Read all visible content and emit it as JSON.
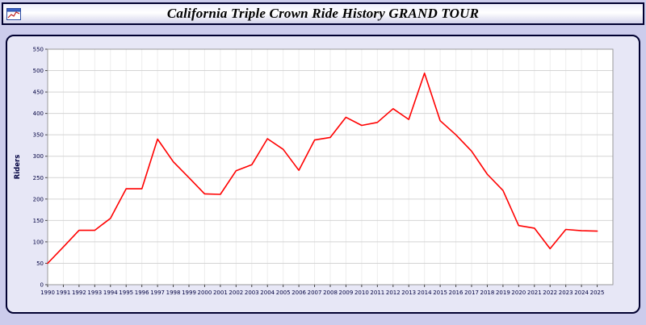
{
  "title": "California Triple Crown Ride History GRAND TOUR",
  "colors": {
    "page_background": "#ccccec",
    "panel_background": "#e7e7f6",
    "border": "#000030",
    "line": "#ff0000",
    "gridline": "#d4d4d4",
    "tick_text": "#000040"
  },
  "chart_data": {
    "type": "line",
    "title": "California Triple Crown Ride History GRAND TOUR",
    "xlabel": "",
    "ylabel": "Riders",
    "ylim": [
      0,
      550
    ],
    "ytick_step": 50,
    "grid": true,
    "legend": "none",
    "line_color": "#ff0000",
    "categories": [
      "1990",
      "1991",
      "1992",
      "1993",
      "1994",
      "1995",
      "1996",
      "1997",
      "1998",
      "1999",
      "2000",
      "2001",
      "2002",
      "2003",
      "2004",
      "2005",
      "2006",
      "2007",
      "2008",
      "2009",
      "2010",
      "2011",
      "2012",
      "2013",
      "2014",
      "2015",
      "2016",
      "2017",
      "2018",
      "2019",
      "2020",
      "2021",
      "2022",
      "2023",
      "2024",
      "2025"
    ],
    "values": [
      50,
      88,
      127,
      127,
      155,
      224,
      224,
      340,
      287,
      250,
      212,
      211,
      266,
      280,
      341,
      316,
      267,
      338,
      344,
      391,
      372,
      379,
      411,
      386,
      494,
      383,
      350,
      312,
      258,
      220,
      138,
      132,
      84,
      129,
      126,
      125
    ]
  }
}
